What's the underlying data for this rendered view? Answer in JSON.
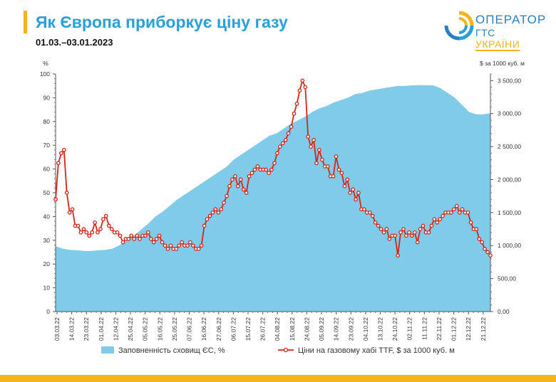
{
  "header": {
    "title": "Як Європа приборкує ціну газу",
    "date_range": "01.03.–03.01.2023"
  },
  "logo": {
    "line1": "ОПЕРАТОР",
    "line2_a": "ГТС",
    "line2_b": "УКРАЇНИ"
  },
  "colors": {
    "accent": "#f5b41a",
    "storage_fill": "#7ecbea",
    "price_line": "#d72418",
    "title": "#2a9fd8"
  },
  "chart_data": {
    "type": "area+line",
    "left_axis": {
      "label": "%",
      "min": 0,
      "max": 100,
      "ticks": [
        "0",
        "10",
        "20",
        "30",
        "40",
        "50",
        "60",
        "70",
        "80",
        "90",
        "100"
      ]
    },
    "right_axis": {
      "label": "$ за 1000 куб. м",
      "min": 0,
      "max": 3600,
      "ticks": [
        "0,00",
        "500,00",
        "1 000,00",
        "1 500,00",
        "2 000,00",
        "2 500,00",
        "3 000,00",
        "3 500,00"
      ]
    },
    "x_ticks": [
      "03.03.22",
      "14.03.22",
      "23.03.22",
      "01.04.22",
      "12.04.22",
      "25.04.22",
      "05.05.22",
      "16.05.22",
      "25.05.22",
      "07.06.22",
      "16.06.22",
      "27.06.22",
      "06.07.22",
      "15.07.22",
      "26.07.22",
      "04.08.22",
      "15.08.22",
      "24.08.22",
      "05.09.22",
      "14.09.22",
      "23.09.22",
      "04.10.22",
      "13.10.22",
      "24.10.22",
      "02.11.22",
      "11.11.22",
      "22.11.22",
      "01.12.22",
      "12.12.22",
      "21.12.22"
    ],
    "series": [
      {
        "name": "Заповненність сховищ ЄС, %",
        "type": "area",
        "axis": "left",
        "values": [
          27.5,
          26.5,
          26,
          25.8,
          25.5,
          25.5,
          25.8,
          26,
          26.5,
          28,
          30,
          32,
          34.5,
          37,
          40,
          42,
          44.5,
          47,
          49,
          51,
          53,
          55,
          57,
          59,
          61,
          64,
          66,
          68,
          70,
          72,
          74,
          75,
          77,
          79,
          80.5,
          82,
          84,
          85.5,
          86.5,
          88,
          89,
          90,
          91.5,
          92,
          93,
          93.5,
          94,
          94.5,
          95,
          95,
          95.2,
          95.3,
          95.3,
          95.2,
          94,
          92,
          90,
          87,
          84,
          83,
          83,
          83.5
        ]
      },
      {
        "name": "Ціни на газовому хабі TTF, $ за 1000 куб. м",
        "type": "line",
        "axis": "right",
        "values": [
          1700,
          2250,
          2400,
          2450,
          1800,
          1500,
          1550,
          1300,
          1300,
          1200,
          1250,
          1200,
          1150,
          1200,
          1350,
          1200,
          1250,
          1400,
          1450,
          1300,
          1250,
          1200,
          1200,
          1150,
          1050,
          1100,
          1100,
          1150,
          1100,
          1150,
          1100,
          1150,
          1150,
          1200,
          1100,
          1050,
          1100,
          1150,
          1050,
          1000,
          950,
          1000,
          950,
          950,
          1000,
          1050,
          1000,
          1000,
          1050,
          1000,
          950,
          950,
          1000,
          1300,
          1400,
          1450,
          1500,
          1550,
          1500,
          1550,
          1650,
          1750,
          1900,
          2000,
          2050,
          1900,
          2000,
          1850,
          1800,
          2050,
          2100,
          2150,
          2200,
          2150,
          2150,
          2150,
          2100,
          2150,
          2250,
          2400,
          2500,
          2550,
          2600,
          2700,
          2800,
          3000,
          3150,
          3350,
          3500,
          3400,
          2650,
          2500,
          2600,
          2250,
          2450,
          2300,
          2200,
          2200,
          2050,
          2050,
          2350,
          2150,
          2100,
          1900,
          2000,
          1800,
          1850,
          1700,
          1800,
          1550,
          1550,
          1500,
          1500,
          1450,
          1350,
          1300,
          1250,
          1200,
          1250,
          1100,
          1150,
          1150,
          850,
          1200,
          1250,
          1150,
          1200,
          1150,
          1200,
          1050,
          1250,
          1300,
          1200,
          1200,
          1300,
          1400,
          1350,
          1400,
          1450,
          1500,
          1500,
          1500,
          1550,
          1600,
          1500,
          1550,
          1500,
          1500,
          1350,
          1250,
          1250,
          1100,
          1050,
          950,
          900,
          850
        ]
      }
    ],
    "legend_placement": "bottom",
    "grid": false
  }
}
